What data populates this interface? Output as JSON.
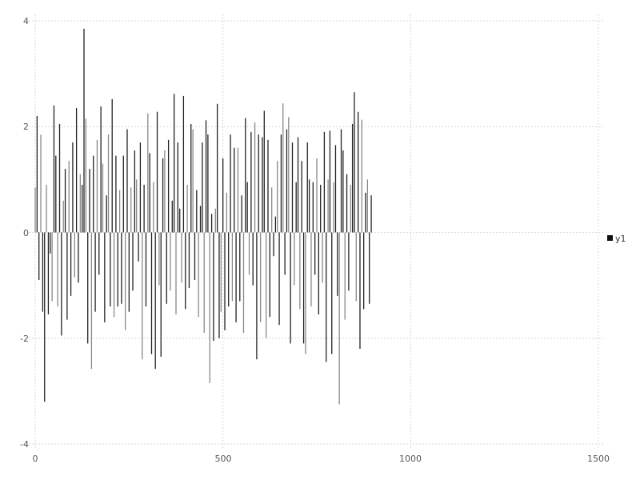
{
  "chart_data": {
    "type": "bar",
    "title": "",
    "xlabel": "",
    "ylabel": "",
    "xlim": [
      0,
      1500
    ],
    "ylim": [
      -4,
      4
    ],
    "xticks": [
      "0",
      "500",
      "1000",
      "1500"
    ],
    "yticks": [
      "4",
      "2",
      "0",
      "-2",
      "-4"
    ],
    "grid": true,
    "legend_position": "right",
    "x_step": 5,
    "series": [
      {
        "name": "y1",
        "color": "#222222",
        "values": [
          0.85,
          2.2,
          -0.9,
          1.85,
          -1.5,
          -3.2,
          0.9,
          -1.55,
          -0.4,
          -1.3,
          2.4,
          1.45,
          -1.4,
          2.05,
          -1.95,
          0.6,
          1.2,
          -1.65,
          1.35,
          -1.2,
          1.7,
          -0.85,
          2.35,
          -0.95,
          1.1,
          0.9,
          3.85,
          2.15,
          -2.1,
          1.2,
          -2.58,
          1.45,
          -1.5,
          1.75,
          -0.8,
          2.38,
          1.3,
          -1.7,
          0.7,
          1.85,
          -1.4,
          2.52,
          -1.6,
          1.45,
          -1.4,
          0.8,
          -1.35,
          1.45,
          -1.85,
          1.95,
          -1.5,
          0.85,
          -1.1,
          1.55,
          1.0,
          -0.55,
          1.7,
          -2.4,
          0.9,
          -1.4,
          2.25,
          1.5,
          -2.3,
          0.95,
          -2.58,
          2.28,
          -1.0,
          -2.35,
          1.4,
          1.55,
          -1.35,
          1.75,
          -1.1,
          0.6,
          2.62,
          -1.55,
          1.7,
          0.45,
          -0.95,
          2.58,
          -1.45,
          0.9,
          -1.05,
          2.05,
          1.95,
          -0.9,
          0.8,
          -1.6,
          0.5,
          1.7,
          -1.9,
          2.12,
          1.85,
          -2.85,
          0.35,
          -2.05,
          0.45,
          2.43,
          -2.0,
          -1.5,
          1.4,
          -1.85,
          0.75,
          -1.4,
          1.85,
          -1.3,
          1.6,
          -1.7,
          1.6,
          -1.3,
          0.7,
          -1.9,
          2.16,
          0.95,
          -0.8,
          1.9,
          -1.0,
          2.08,
          -2.4,
          1.85,
          -1.7,
          1.8,
          2.3,
          -2.0,
          1.75,
          -1.6,
          0.85,
          -0.45,
          0.3,
          1.35,
          -1.75,
          1.85,
          2.44,
          -0.8,
          1.95,
          2.18,
          -2.1,
          1.7,
          -1.0,
          0.95,
          1.8,
          -1.45,
          1.35,
          -2.1,
          -2.3,
          1.7,
          1.0,
          -1.4,
          0.95,
          -0.8,
          1.4,
          -1.55,
          0.9,
          -0.95,
          1.9,
          -2.45,
          1.0,
          1.92,
          -2.3,
          0.95,
          1.65,
          -1.2,
          -3.25,
          1.95,
          1.55,
          -1.65,
          1.1,
          -1.1,
          0.9,
          2.05,
          2.65,
          -1.3,
          2.28,
          -2.2,
          2.13,
          -1.45,
          0.75,
          1.0,
          -1.35,
          0.7
        ]
      }
    ]
  }
}
